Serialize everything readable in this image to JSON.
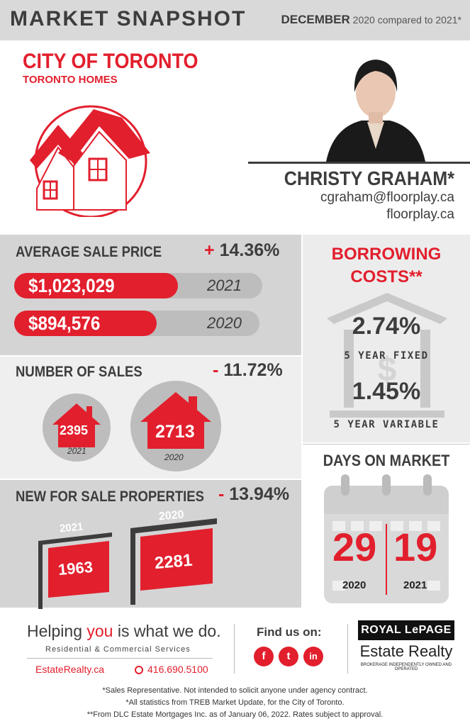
{
  "header": {
    "title": "MARKET SNAPSHOT",
    "month": "DECEMBER",
    "compare": "2020 compared to 2021*"
  },
  "location": {
    "city": "CITY OF TORONTO",
    "subtitle": "TORONTO HOMES"
  },
  "agent": {
    "name": "CHRISTY GRAHAM*",
    "email": "cgraham@floorplay.ca",
    "website": "floorplay.ca"
  },
  "average_sale_price": {
    "title": "AVERAGE SALE PRICE",
    "change_sign": "+",
    "change": "14.36%",
    "rows": [
      {
        "value": "$1,023,029",
        "year": "2021",
        "fill": 0.66
      },
      {
        "value": "$894,576",
        "year": "2020",
        "fill": 0.58
      }
    ]
  },
  "number_of_sales": {
    "title": "NUMBER OF SALES",
    "change_sign": "-",
    "change": "11.72%",
    "items": [
      {
        "value": "2395",
        "year": "2021"
      },
      {
        "value": "2713",
        "year": "2020"
      }
    ]
  },
  "new_for_sale": {
    "title": "NEW FOR SALE PROPERTIES",
    "change_sign": "-",
    "change": "13.94%",
    "items": [
      {
        "value": "1963",
        "year": "2021"
      },
      {
        "value": "2281",
        "year": "2020"
      }
    ]
  },
  "borrowing": {
    "title_line1": "BORROWING",
    "title_line2": "COSTS**",
    "fixed_rate": "2.74%",
    "fixed_label": "5 YEAR FIXED",
    "variable_rate": "1.45%",
    "variable_label": "5 YEAR VARIABLE"
  },
  "days_on_market": {
    "title": "DAYS ON MARKET",
    "values": [
      {
        "value": "29",
        "year": "2020"
      },
      {
        "value": "19",
        "year": "2021"
      }
    ]
  },
  "footer": {
    "slogan_pre": "Helping ",
    "slogan_accent": "you",
    "slogan_post": " is what we do.",
    "services": "Residential & Commercial Services",
    "website": "EstateRealty.ca",
    "phone": "416.690.5100",
    "find_us": "Find us on:",
    "social": [
      "f",
      "t",
      "in"
    ],
    "brand_top": "ROYAL LePAGE",
    "brand_sub": "Estate Realty",
    "brand_tiny": "BROKERAGE INDEPENDENTLY OWNED AND OPERATED",
    "notes": [
      "*Sales Representative. Not intended to solicit anyone under agency contract.",
      "*All statistics from TREB Market Update, for the City of Toronto.",
      "**From DLC Estate Mortgages Inc. as of January 06, 2022. Rates subject to approval."
    ]
  },
  "colors": {
    "accent": "#e21f2d",
    "dark": "#3d3d3d",
    "panel": "#d4d4d4"
  },
  "icons": [
    "house-circle-icon",
    "bank-icon",
    "dollar-icon",
    "calendar-icon",
    "for-sale-sign-icon",
    "phone-icon"
  ]
}
